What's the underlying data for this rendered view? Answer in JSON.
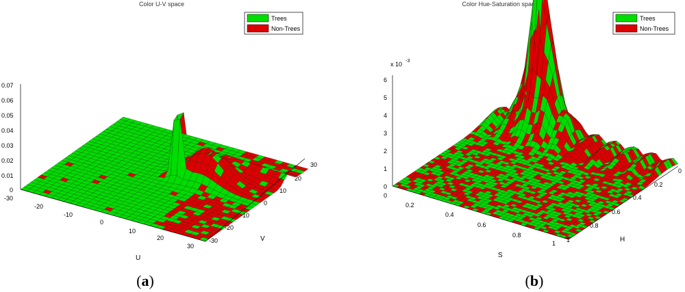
{
  "colors": {
    "trees": "#00dd00",
    "non_trees": "#dd0000",
    "edge": "#1a1a1a"
  },
  "chart_data": [
    {
      "type": "surface3d",
      "title": "Color U-V space",
      "xlabel": "U",
      "ylabel": "V",
      "zlabel": "",
      "u_ticks": [
        "-30",
        "-20",
        "-10",
        "0",
        "10",
        "20",
        "30"
      ],
      "v_ticks": [
        "-30",
        "-20",
        "-10",
        "0",
        "10",
        "20",
        "30"
      ],
      "z_ticks": [
        "0",
        "0.01",
        "0.02",
        "0.03",
        "0.04",
        "0.05",
        "0.06",
        "0.07"
      ],
      "zlim": [
        0,
        0.07
      ],
      "legend": {
        "placement": "top-right",
        "entries": [
          {
            "name": "Trees",
            "color": "#00dd00"
          },
          {
            "name": "Non-Trees",
            "color": "#dd0000"
          }
        ]
      },
      "features": [
        {
          "class": "Trees",
          "description": "sharp peak",
          "u": 3,
          "v": 3,
          "z": 0.07
        },
        {
          "class": "Non-Trees",
          "description": "broad hump",
          "u": 10,
          "v": 8,
          "z": 0.02
        }
      ],
      "caption": "(a)"
    },
    {
      "type": "surface3d",
      "title": "Color Hue-Saturation space",
      "xlabel": "S",
      "ylabel": "H",
      "zlabel": "",
      "z_multiplier": "x 10",
      "z_exponent": "-3",
      "s_ticks": [
        "0",
        "0.2",
        "0.4",
        "0.6",
        "0.8",
        "1"
      ],
      "h_ticks": [
        "0",
        "0.2",
        "0.4",
        "0.6",
        "0.8",
        "1"
      ],
      "z_ticks": [
        "0",
        "1",
        "2",
        "3",
        "4",
        "5",
        "6"
      ],
      "zlim": [
        0,
        6
      ],
      "legend": {
        "placement": "top-right",
        "entries": [
          {
            "name": "Trees",
            "color": "#00dd00"
          },
          {
            "name": "Non-Trees",
            "color": "#dd0000"
          }
        ]
      },
      "features": [
        {
          "class": "Non-Trees",
          "description": "tall peak",
          "s": 0.25,
          "h": 0.05,
          "z": 6.6
        },
        {
          "class": "Trees",
          "description": "ridge",
          "s": 0.3,
          "h": 0.1,
          "z": 4.3
        }
      ],
      "caption": "(b)"
    }
  ]
}
